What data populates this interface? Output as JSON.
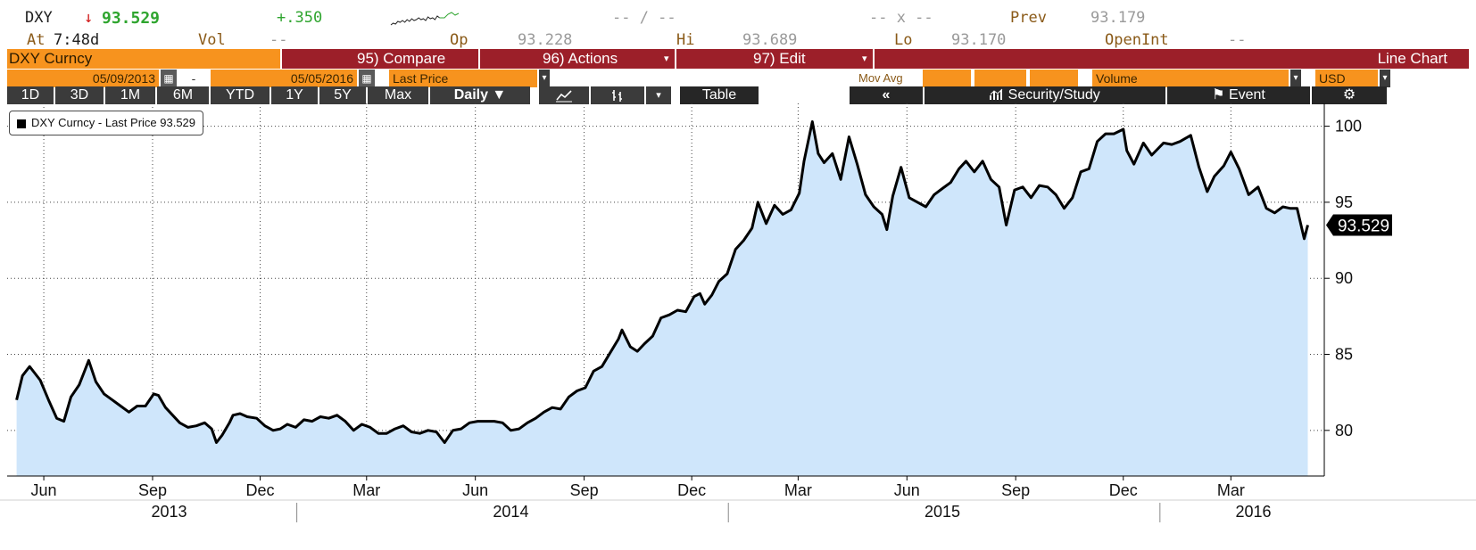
{
  "quote": {
    "ticker": "DXY",
    "arrow": "↓",
    "last": "93.529",
    "change": "+.350",
    "bid_ask": "-- / --",
    "size": "-- x --",
    "prev_label": "Prev",
    "prev_value": "93.179",
    "at_label": "At",
    "time": "7:48d",
    "vol_label": "Vol",
    "vol_value": "--",
    "open_label": "Op",
    "open_value": "93.228",
    "high_label": "Hi",
    "high_value": "93.689",
    "low_label": "Lo",
    "low_value": "93.170",
    "openint_label": "OpenInt",
    "openint_value": "--"
  },
  "toolbar": {
    "security": "DXY Curncy",
    "compare": "95) Compare",
    "actions": "96) Actions",
    "edit": "97) Edit",
    "chart_type": "Line Chart",
    "start_date": "05/09/2013",
    "dash": "-",
    "end_date": "05/05/2016",
    "field": "Last Price",
    "mov_avg": "Mov Avg",
    "volume": "Volume",
    "currency": "USD",
    "calendar_icon": "calendar-icon",
    "dropdown_icon": "▾"
  },
  "periods": [
    "1D",
    "3D",
    "1M",
    "6M",
    "YTD",
    "1Y",
    "5Y",
    "Max"
  ],
  "frequency": "Daily ▼",
  "tools": {
    "line_icon": "line-chart-icon",
    "bar_icon": "bar-chart-icon",
    "table": "Table",
    "collapse": "«",
    "security_study": "Security/Study",
    "event": "Event",
    "settings_icon": "gear-icon"
  },
  "colors": {
    "accent_orange": "#f7931e",
    "menu_red": "#9c1f29",
    "area_fill": "#cfe6fb",
    "line": "#000000",
    "up_green": "#2fa52f",
    "down_red": "#d01818"
  },
  "chart_data": {
    "type": "area",
    "legend": "DXY Curncy - Last Price 93.529",
    "last_value_label": "93.529",
    "ylim": [
      77,
      101.5
    ],
    "y_ticks": [
      80,
      85,
      90,
      95,
      100
    ],
    "grid": true,
    "legend_position": "top-left",
    "x_month_ticks": [
      {
        "label": "Jun",
        "date": "2013-06-01"
      },
      {
        "label": "Sep",
        "date": "2013-09-01"
      },
      {
        "label": "Dec",
        "date": "2013-12-01"
      },
      {
        "label": "Mar",
        "date": "2014-03-01"
      },
      {
        "label": "Jun",
        "date": "2014-06-01"
      },
      {
        "label": "Sep",
        "date": "2014-09-01"
      },
      {
        "label": "Dec",
        "date": "2014-12-01"
      },
      {
        "label": "Mar",
        "date": "2015-03-01"
      },
      {
        "label": "Jun",
        "date": "2015-06-01"
      },
      {
        "label": "Sep",
        "date": "2015-09-01"
      },
      {
        "label": "Dec",
        "date": "2015-12-01"
      },
      {
        "label": "Mar",
        "date": "2016-03-01"
      }
    ],
    "x_year_labels": [
      {
        "label": "2013",
        "date": "2013-09-15"
      },
      {
        "label": "2014",
        "date": "2014-07-01"
      },
      {
        "label": "2015",
        "date": "2015-07-01"
      },
      {
        "label": "2016",
        "date": "2016-03-20"
      }
    ],
    "x_year_separators": [
      "2014-01-01",
      "2015-01-01",
      "2016-01-01"
    ],
    "series": [
      {
        "name": "DXY Curncy - Last Price",
        "points": [
          [
            "2013-05-09",
            82.0
          ],
          [
            "2013-05-14",
            83.6
          ],
          [
            "2013-05-20",
            84.2
          ],
          [
            "2013-05-24",
            83.8
          ],
          [
            "2013-05-29",
            83.3
          ],
          [
            "2013-06-05",
            82.0
          ],
          [
            "2013-06-12",
            80.8
          ],
          [
            "2013-06-18",
            80.6
          ],
          [
            "2013-06-24",
            82.2
          ],
          [
            "2013-07-01",
            83.0
          ],
          [
            "2013-07-05",
            83.8
          ],
          [
            "2013-07-09",
            84.6
          ],
          [
            "2013-07-15",
            83.2
          ],
          [
            "2013-07-22",
            82.4
          ],
          [
            "2013-07-29",
            82.0
          ],
          [
            "2013-08-05",
            81.6
          ],
          [
            "2013-08-12",
            81.2
          ],
          [
            "2013-08-19",
            81.6
          ],
          [
            "2013-08-26",
            81.6
          ],
          [
            "2013-09-02",
            82.4
          ],
          [
            "2013-09-06",
            82.3
          ],
          [
            "2013-09-12",
            81.5
          ],
          [
            "2013-09-18",
            81.0
          ],
          [
            "2013-09-24",
            80.5
          ],
          [
            "2013-10-01",
            80.2
          ],
          [
            "2013-10-08",
            80.3
          ],
          [
            "2013-10-15",
            80.5
          ],
          [
            "2013-10-21",
            80.1
          ],
          [
            "2013-10-25",
            79.2
          ],
          [
            "2013-10-30",
            79.7
          ],
          [
            "2013-11-05",
            80.5
          ],
          [
            "2013-11-08",
            81.0
          ],
          [
            "2013-11-14",
            81.1
          ],
          [
            "2013-11-20",
            80.9
          ],
          [
            "2013-11-28",
            80.8
          ],
          [
            "2013-12-05",
            80.3
          ],
          [
            "2013-12-12",
            80.0
          ],
          [
            "2013-12-18",
            80.1
          ],
          [
            "2013-12-24",
            80.4
          ],
          [
            "2013-12-31",
            80.2
          ],
          [
            "2014-01-07",
            80.7
          ],
          [
            "2014-01-14",
            80.6
          ],
          [
            "2014-01-21",
            80.9
          ],
          [
            "2014-01-28",
            80.8
          ],
          [
            "2014-02-04",
            81.0
          ],
          [
            "2014-02-11",
            80.6
          ],
          [
            "2014-02-18",
            80.0
          ],
          [
            "2014-02-25",
            80.4
          ],
          [
            "2014-03-04",
            80.2
          ],
          [
            "2014-03-11",
            79.8
          ],
          [
            "2014-03-18",
            79.8
          ],
          [
            "2014-03-25",
            80.1
          ],
          [
            "2014-04-01",
            80.3
          ],
          [
            "2014-04-08",
            79.9
          ],
          [
            "2014-04-15",
            79.8
          ],
          [
            "2014-04-22",
            80.0
          ],
          [
            "2014-04-29",
            79.9
          ],
          [
            "2014-05-06",
            79.2
          ],
          [
            "2014-05-13",
            80.0
          ],
          [
            "2014-05-20",
            80.1
          ],
          [
            "2014-05-27",
            80.5
          ],
          [
            "2014-06-03",
            80.6
          ],
          [
            "2014-06-10",
            80.6
          ],
          [
            "2014-06-17",
            80.6
          ],
          [
            "2014-06-24",
            80.5
          ],
          [
            "2014-07-01",
            80.0
          ],
          [
            "2014-07-08",
            80.1
          ],
          [
            "2014-07-15",
            80.5
          ],
          [
            "2014-07-22",
            80.8
          ],
          [
            "2014-07-29",
            81.2
          ],
          [
            "2014-08-05",
            81.5
          ],
          [
            "2014-08-12",
            81.4
          ],
          [
            "2014-08-19",
            82.2
          ],
          [
            "2014-08-26",
            82.6
          ],
          [
            "2014-09-02",
            82.8
          ],
          [
            "2014-09-09",
            83.9
          ],
          [
            "2014-09-16",
            84.2
          ],
          [
            "2014-09-23",
            85.1
          ],
          [
            "2014-09-30",
            86.0
          ],
          [
            "2014-10-03",
            86.6
          ],
          [
            "2014-10-10",
            85.5
          ],
          [
            "2014-10-16",
            85.2
          ],
          [
            "2014-10-22",
            85.7
          ],
          [
            "2014-10-29",
            86.2
          ],
          [
            "2014-11-05",
            87.4
          ],
          [
            "2014-11-12",
            87.6
          ],
          [
            "2014-11-19",
            87.9
          ],
          [
            "2014-11-26",
            87.8
          ],
          [
            "2014-12-03",
            88.8
          ],
          [
            "2014-12-08",
            89.0
          ],
          [
            "2014-12-12",
            88.3
          ],
          [
            "2014-12-18",
            88.9
          ],
          [
            "2014-12-24",
            89.8
          ],
          [
            "2014-12-31",
            90.3
          ],
          [
            "2015-01-07",
            91.9
          ],
          [
            "2015-01-14",
            92.5
          ],
          [
            "2015-01-21",
            93.3
          ],
          [
            "2015-01-26",
            95.0
          ],
          [
            "2015-02-02",
            93.6
          ],
          [
            "2015-02-09",
            94.8
          ],
          [
            "2015-02-16",
            94.2
          ],
          [
            "2015-02-23",
            94.5
          ],
          [
            "2015-03-02",
            95.6
          ],
          [
            "2015-03-06",
            97.7
          ],
          [
            "2015-03-13",
            100.3
          ],
          [
            "2015-03-18",
            98.2
          ],
          [
            "2015-03-23",
            97.6
          ],
          [
            "2015-03-30",
            98.2
          ],
          [
            "2015-04-06",
            96.5
          ],
          [
            "2015-04-13",
            99.3
          ],
          [
            "2015-04-20",
            97.5
          ],
          [
            "2015-04-27",
            95.5
          ],
          [
            "2015-05-04",
            94.7
          ],
          [
            "2015-05-11",
            94.2
          ],
          [
            "2015-05-15",
            93.2
          ],
          [
            "2015-05-20",
            95.4
          ],
          [
            "2015-05-27",
            97.3
          ],
          [
            "2015-06-03",
            95.3
          ],
          [
            "2015-06-10",
            95.0
          ],
          [
            "2015-06-17",
            94.7
          ],
          [
            "2015-06-24",
            95.5
          ],
          [
            "2015-07-01",
            95.9
          ],
          [
            "2015-07-08",
            96.3
          ],
          [
            "2015-07-15",
            97.2
          ],
          [
            "2015-07-21",
            97.7
          ],
          [
            "2015-07-28",
            97.0
          ],
          [
            "2015-08-04",
            97.7
          ],
          [
            "2015-08-11",
            96.5
          ],
          [
            "2015-08-18",
            96.0
          ],
          [
            "2015-08-24",
            93.5
          ],
          [
            "2015-08-31",
            95.8
          ],
          [
            "2015-09-07",
            96.0
          ],
          [
            "2015-09-14",
            95.3
          ],
          [
            "2015-09-21",
            96.1
          ],
          [
            "2015-09-28",
            96.0
          ],
          [
            "2015-10-05",
            95.5
          ],
          [
            "2015-10-12",
            94.6
          ],
          [
            "2015-10-19",
            95.3
          ],
          [
            "2015-10-26",
            97.0
          ],
          [
            "2015-11-02",
            97.2
          ],
          [
            "2015-11-09",
            99.0
          ],
          [
            "2015-11-16",
            99.5
          ],
          [
            "2015-11-23",
            99.5
          ],
          [
            "2015-12-01",
            99.8
          ],
          [
            "2015-12-04",
            98.4
          ],
          [
            "2015-12-10",
            97.5
          ],
          [
            "2015-12-18",
            98.9
          ],
          [
            "2015-12-25",
            98.1
          ],
          [
            "2016-01-04",
            98.9
          ],
          [
            "2016-01-11",
            98.8
          ],
          [
            "2016-01-18",
            99.0
          ],
          [
            "2016-01-27",
            99.4
          ],
          [
            "2016-02-03",
            97.3
          ],
          [
            "2016-02-10",
            95.7
          ],
          [
            "2016-02-16",
            96.7
          ],
          [
            "2016-02-24",
            97.4
          ],
          [
            "2016-03-01",
            98.3
          ],
          [
            "2016-03-08",
            97.2
          ],
          [
            "2016-03-16",
            95.5
          ],
          [
            "2016-03-24",
            96.0
          ],
          [
            "2016-03-31",
            94.6
          ],
          [
            "2016-04-07",
            94.3
          ],
          [
            "2016-04-14",
            94.7
          ],
          [
            "2016-04-20",
            94.6
          ],
          [
            "2016-04-26",
            94.6
          ],
          [
            "2016-05-02",
            92.6
          ],
          [
            "2016-05-05",
            93.5
          ]
        ]
      }
    ]
  }
}
